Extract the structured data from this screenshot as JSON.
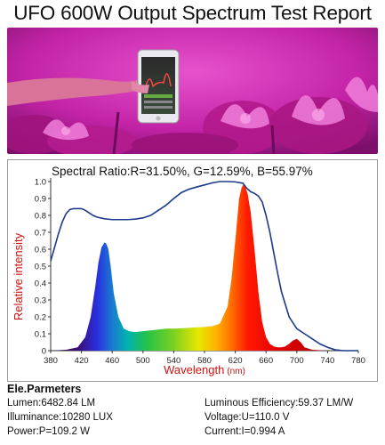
{
  "title": "UFO 600W Output Spectrum Test Report",
  "spectral_ratio": "Spectral Ratio:R=31.50%, G=12.59%, B=55.97%",
  "parameters": {
    "heading": "Ele.Parmeters",
    "left": [
      "Lumen:6482.84 LM",
      "Illuminance:10280 LUX",
      "Power:P=109.2 W"
    ],
    "right": [
      "Luminous Efficiency:59.37 LM/W",
      "Voltage:U=110.0 V",
      "Current:I=0.994 A"
    ]
  },
  "colors": {
    "photo_background": "#d42bb6",
    "envelope_line": "#1d3a8a",
    "axis_label": "#cc1111"
  },
  "chart_data": {
    "type": "area",
    "xlabel": "Wavelength",
    "xlabel_unit": "(nm)",
    "ylabel": "Relative intensity",
    "xlim": [
      380,
      780
    ],
    "ylim": [
      0,
      1.0
    ],
    "x_ticks": [
      380,
      420,
      460,
      500,
      540,
      580,
      620,
      660,
      700,
      740,
      780
    ],
    "y_ticks": [
      0,
      0.1,
      0.2,
      0.3,
      0.4,
      0.5,
      0.6,
      0.7,
      0.8,
      0.9,
      1.0
    ],
    "grid": false,
    "spectrum": {
      "x": [
        380,
        400,
        415,
        425,
        432,
        438,
        442,
        446,
        450,
        452,
        455,
        458,
        462,
        468,
        475,
        482,
        490,
        500,
        510,
        520,
        530,
        540,
        550,
        560,
        570,
        580,
        590,
        600,
        610,
        615,
        620,
        625,
        628,
        630,
        633,
        636,
        640,
        645,
        650,
        655,
        660,
        665,
        670,
        675,
        680,
        685,
        690,
        695,
        700,
        705,
        710,
        720,
        740,
        780
      ],
      "y": [
        0,
        0.005,
        0.02,
        0.08,
        0.2,
        0.38,
        0.52,
        0.61,
        0.64,
        0.635,
        0.6,
        0.5,
        0.34,
        0.2,
        0.13,
        0.115,
        0.11,
        0.115,
        0.12,
        0.125,
        0.13,
        0.13,
        0.132,
        0.135,
        0.138,
        0.14,
        0.145,
        0.16,
        0.26,
        0.42,
        0.65,
        0.9,
        0.96,
        0.98,
        0.97,
        0.93,
        0.82,
        0.6,
        0.35,
        0.17,
        0.08,
        0.04,
        0.025,
        0.02,
        0.02,
        0.025,
        0.04,
        0.06,
        0.07,
        0.05,
        0.02,
        0.005,
        0,
        0
      ]
    },
    "envelope": {
      "x": [
        380,
        385,
        390,
        395,
        400,
        405,
        410,
        415,
        420,
        425,
        430,
        435,
        440,
        450,
        460,
        470,
        480,
        490,
        500,
        510,
        520,
        530,
        540,
        550,
        560,
        570,
        580,
        590,
        600,
        610,
        620,
        630,
        635,
        640,
        645,
        650,
        655,
        660,
        665,
        670,
        675,
        680,
        690,
        700,
        710,
        720,
        730,
        740,
        750,
        760,
        770,
        780
      ],
      "y": [
        0.53,
        0.61,
        0.69,
        0.76,
        0.81,
        0.835,
        0.84,
        0.84,
        0.84,
        0.83,
        0.815,
        0.8,
        0.79,
        0.78,
        0.775,
        0.775,
        0.775,
        0.778,
        0.785,
        0.8,
        0.83,
        0.86,
        0.9,
        0.935,
        0.955,
        0.968,
        0.98,
        0.992,
        1.0,
        1.0,
        0.998,
        0.99,
        0.96,
        0.94,
        0.93,
        0.915,
        0.88,
        0.8,
        0.7,
        0.58,
        0.46,
        0.35,
        0.2,
        0.13,
        0.1,
        0.07,
        0.04,
        0.02,
        0.005,
        0,
        0,
        0
      ]
    }
  }
}
